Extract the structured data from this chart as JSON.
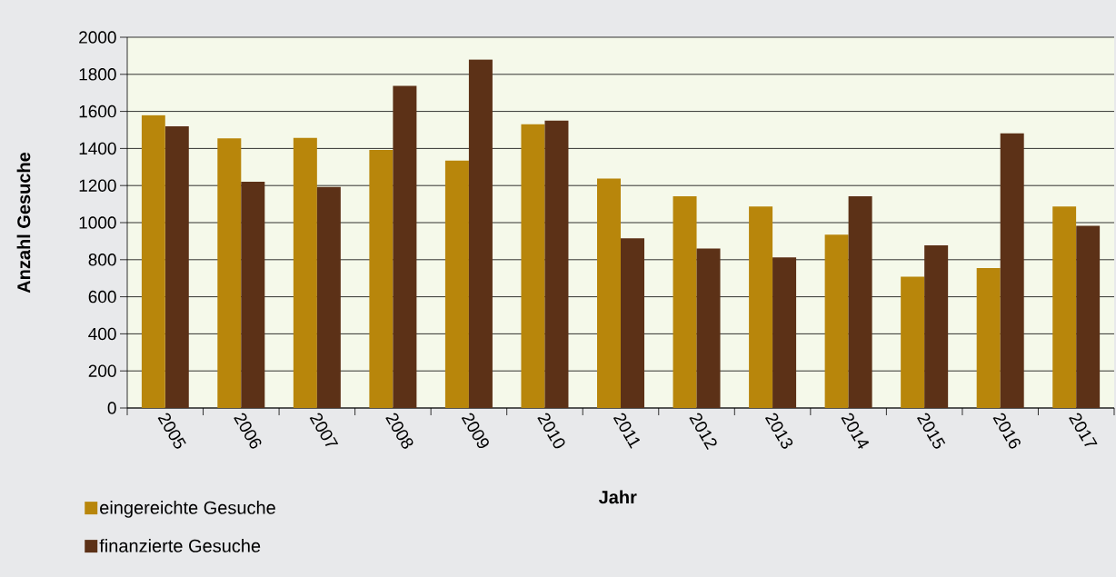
{
  "chart_data": {
    "type": "bar",
    "xlabel": "Jahr",
    "ylabel": "Anzahl Gesuche",
    "categories": [
      "2005",
      "2006",
      "2007",
      "2008",
      "2009",
      "2010",
      "2011",
      "2012",
      "2013",
      "2014",
      "2015",
      "2016",
      "2017"
    ],
    "series": [
      {
        "name": "eingereichte Gesuche",
        "color": "#b8860b",
        "values": [
          1580,
          1455,
          1457,
          1392,
          1334,
          1531,
          1238,
          1142,
          1087,
          935,
          708,
          755,
          1087
        ]
      },
      {
        "name": "finanzierte Gesuche",
        "color": "#5c3117",
        "values": [
          1520,
          1220,
          1193,
          1738,
          1880,
          1550,
          915,
          860,
          812,
          1142,
          878,
          1482,
          983
        ]
      }
    ],
    "ylim": [
      0,
      2000
    ],
    "yticks": [
      0,
      200,
      400,
      600,
      800,
      1000,
      1200,
      1400,
      1600,
      1800,
      2000
    ],
    "grid": "y",
    "legend": "bottom left"
  }
}
